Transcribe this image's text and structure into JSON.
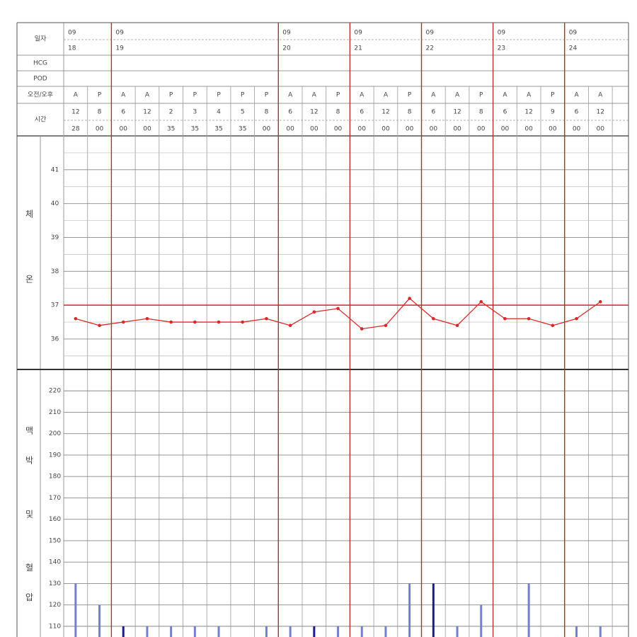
{
  "header": {
    "date_label": "일자",
    "hcg_label": "HCG",
    "pod_label": "POD",
    "ampm_label": "오전/오후",
    "time_label": "시간"
  },
  "dates": [
    {
      "month": "09",
      "day": "18",
      "columns": 2
    },
    {
      "month": "09",
      "day": "19",
      "columns": 7
    },
    {
      "month": "09",
      "day": "20",
      "columns": 3
    },
    {
      "month": "09",
      "day": "21",
      "columns": 3
    },
    {
      "month": "09",
      "day": "22",
      "columns": 3
    },
    {
      "month": "09",
      "day": "23",
      "columns": 3
    },
    {
      "month": "09",
      "day": "24",
      "columns": 2
    }
  ],
  "columns": [
    {
      "ampm": "A",
      "hour": "12",
      "minute": "28"
    },
    {
      "ampm": "P",
      "hour": "8",
      "minute": "00"
    },
    {
      "ampm": "A",
      "hour": "6",
      "minute": "00"
    },
    {
      "ampm": "A",
      "hour": "12",
      "minute": "00"
    },
    {
      "ampm": "P",
      "hour": "2",
      "minute": "35"
    },
    {
      "ampm": "P",
      "hour": "3",
      "minute": "35"
    },
    {
      "ampm": "P",
      "hour": "4",
      "minute": "35"
    },
    {
      "ampm": "P",
      "hour": "5",
      "minute": "35"
    },
    {
      "ampm": "P",
      "hour": "8",
      "minute": "00"
    },
    {
      "ampm": "A",
      "hour": "6",
      "minute": "00"
    },
    {
      "ampm": "A",
      "hour": "12",
      "minute": "00"
    },
    {
      "ampm": "P",
      "hour": "8",
      "minute": "00"
    },
    {
      "ampm": "A",
      "hour": "6",
      "minute": "00"
    },
    {
      "ampm": "A",
      "hour": "12",
      "minute": "00"
    },
    {
      "ampm": "P",
      "hour": "8",
      "minute": "00"
    },
    {
      "ampm": "A",
      "hour": "6",
      "minute": "00"
    },
    {
      "ampm": "A",
      "hour": "12",
      "minute": "00"
    },
    {
      "ampm": "P",
      "hour": "8",
      "minute": "00"
    },
    {
      "ampm": "A",
      "hour": "6",
      "minute": "00"
    },
    {
      "ampm": "A",
      "hour": "12",
      "minute": "00"
    },
    {
      "ampm": "P",
      "hour": "9",
      "minute": "00"
    },
    {
      "ampm": "A",
      "hour": "6",
      "minute": "00"
    },
    {
      "ampm": "A",
      "hour": "12",
      "minute": "00"
    }
  ],
  "chart_data": [
    {
      "type": "line",
      "label": "체온",
      "categories": [
        null,
        null,
        null,
        null,
        null,
        null,
        null,
        null,
        null,
        null,
        null,
        null,
        null,
        null,
        null,
        null,
        null,
        null,
        null,
        null,
        null,
        null,
        null
      ],
      "values": [
        36.6,
        36.4,
        36.5,
        36.6,
        36.5,
        36.5,
        36.5,
        36.5,
        36.6,
        36.4,
        36.8,
        36.9,
        36.3,
        36.4,
        37.2,
        36.6,
        36.4,
        37.1,
        36.6,
        36.6,
        36.4,
        36.6,
        37.1
      ],
      "color": "#d42a2a",
      "reference_line": 37,
      "ylim": [
        35.1,
        42
      ],
      "yticks": [
        36,
        37,
        38,
        39,
        40,
        41
      ],
      "minor_yticks": [
        35.5,
        36.5,
        37.5,
        38.5,
        39.5,
        40.5,
        41.5
      ],
      "grid": true
    },
    {
      "type": "bar",
      "label": "맥박 및 혈압",
      "categories": [
        null,
        null,
        null,
        null,
        null,
        null,
        null,
        null,
        null,
        null,
        null,
        null,
        null,
        null,
        null,
        null,
        null,
        null,
        null,
        null,
        null,
        null,
        null
      ],
      "values": [
        130,
        120,
        110,
        110,
        110,
        110,
        110,
        null,
        110,
        110,
        110,
        110,
        110,
        110,
        130,
        130,
        110,
        120,
        null,
        130,
        null,
        110,
        110
      ],
      "colors": [
        "#7480cc",
        "#7480cc",
        "#1c1c8c",
        "#7480cc",
        "#7480cc",
        "#7480cc",
        "#7480cc",
        null,
        "#7480cc",
        "#7480cc",
        "#1c1c8c",
        "#7480cc",
        "#7480cc",
        "#7480cc",
        "#7480cc",
        "#1c1c8c",
        "#7480cc",
        "#7480cc",
        null,
        "#7480cc",
        null,
        "#7480cc",
        "#7480cc"
      ],
      "ylim": [
        105,
        230
      ],
      "yticks": [
        110,
        120,
        130,
        140,
        150,
        160,
        170,
        180,
        190,
        200,
        210,
        220
      ],
      "grid": true
    }
  ]
}
